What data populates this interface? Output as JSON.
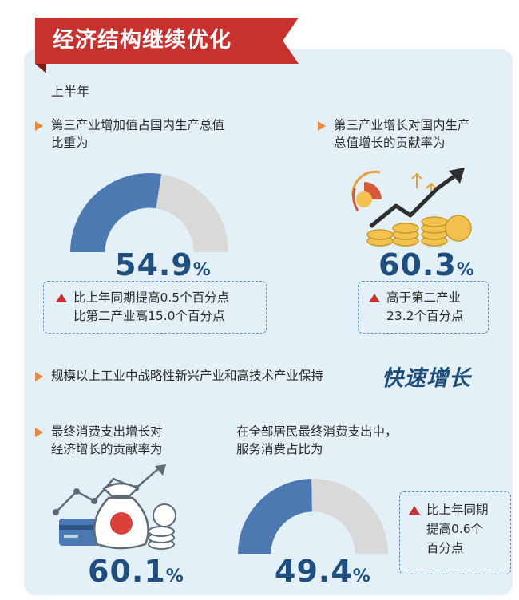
{
  "title": "经济结构继续优化",
  "period": "上半年",
  "sections": {
    "tertiary_share": {
      "label": "第三产业增加值占国内生产总值比重为",
      "label_line1": "第三产业增加值占国内生产总值",
      "label_line2": "比重为",
      "value": 54.9,
      "value_text": "54.9",
      "unit": "%",
      "note_line1": "比上年同期提高0.5个百分点",
      "note_line2": "比第二产业高15.0个百分点"
    },
    "tertiary_contribution": {
      "label_line1": "第三产业增长对国内生产",
      "label_line2": "总值增长的贡献率为",
      "value_text": "60.3",
      "unit": "%",
      "note_line1": "高于第二产业",
      "note_line2": "23.2个百分点"
    },
    "industry": {
      "text": "规模以上工业中战略性新兴产业和高技术产业保持",
      "highlight": "快速增长"
    },
    "consumption_contribution": {
      "label_line1": "最终消费支出增长对",
      "label_line2": "经济增长的贡献率为",
      "value_text": "60.1",
      "unit": "%"
    },
    "service_consumption": {
      "label_line1": "在全部居民最终消费支出中，",
      "label_line2": "服务消费占比为",
      "value": 49.4,
      "value_text": "49.4",
      "unit": "%",
      "note_line1": "比上年同期",
      "note_line2": "提高0.6个",
      "note_line3": "百分点"
    }
  },
  "colors": {
    "banner": "#c8322e",
    "gauge_fill": "#4d79b3",
    "gauge_rest": "#d9d9d9",
    "big_number": "#1f4f80",
    "bullet": "#e8883a",
    "up_arrow": "#c8322e"
  },
  "icons": {
    "bullet": "orange-triangle-icon",
    "increase": "red-up-triangle-icon",
    "coins_chart": "coins-growth-chart-icon",
    "money_bag": "money-bag-icon"
  }
}
